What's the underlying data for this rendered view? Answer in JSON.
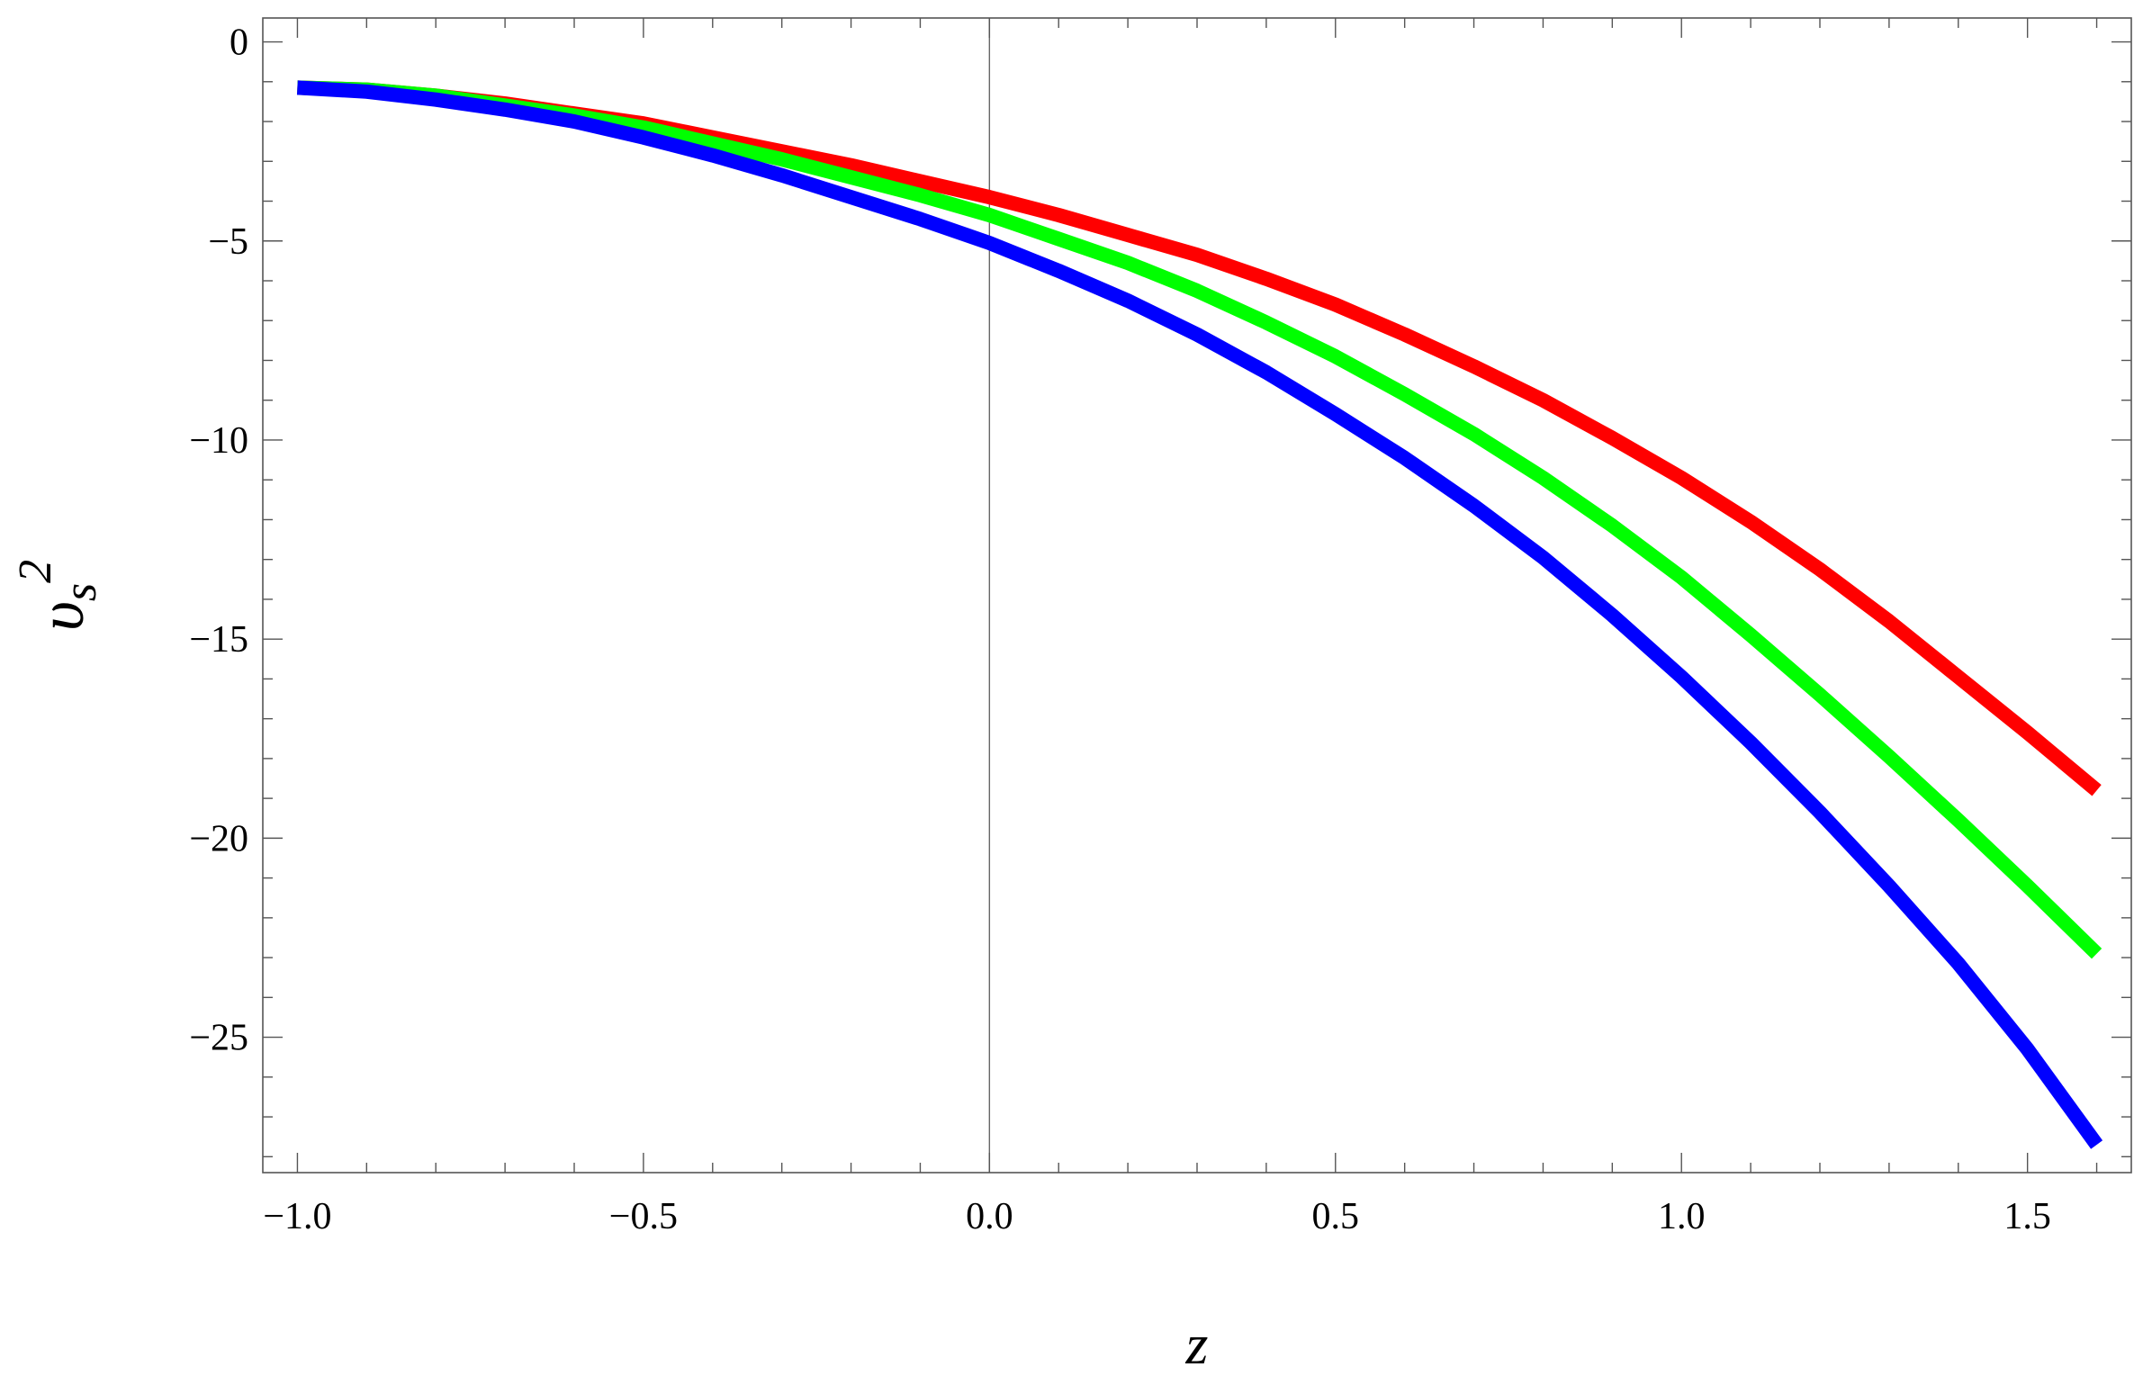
{
  "chart_data": {
    "type": "line",
    "title": "",
    "xlabel": "z",
    "ylabel": {
      "base": "υ",
      "sub": "s",
      "sup": "2"
    },
    "xlim": [
      -1.05,
      1.65
    ],
    "ylim": [
      -28.4,
      0.6
    ],
    "x_ticks": [
      {
        "value": -1.0,
        "label": "−1.0"
      },
      {
        "value": -0.5,
        "label": "−0.5"
      },
      {
        "value": 0.0,
        "label": "0.0"
      },
      {
        "value": 0.5,
        "label": "0.5"
      },
      {
        "value": 1.0,
        "label": "1.0"
      },
      {
        "value": 1.5,
        "label": "1.5"
      }
    ],
    "y_ticks": [
      {
        "value": 0,
        "label": "0"
      },
      {
        "value": -5,
        "label": "−5"
      },
      {
        "value": -10,
        "label": "−10"
      },
      {
        "value": -15,
        "label": "−15"
      },
      {
        "value": -20,
        "label": "−20"
      },
      {
        "value": -25,
        "label": "−25"
      }
    ],
    "x_minor_step": 0.1,
    "y_minor_step": 1,
    "grid": false,
    "legend": "none",
    "x": [
      -1.0,
      -0.9,
      -0.8,
      -0.7,
      -0.6,
      -0.5,
      -0.4,
      -0.3,
      -0.2,
      -0.1,
      0.0,
      0.1,
      0.2,
      0.3,
      0.4,
      0.5,
      0.6,
      0.7,
      0.8,
      0.9,
      1.0,
      1.1,
      1.2,
      1.3,
      1.4,
      1.5,
      1.6
    ],
    "series": [
      {
        "color": "#ff0000",
        "values": [
          -1.15,
          -1.2,
          -1.35,
          -1.55,
          -1.8,
          -2.05,
          -2.4,
          -2.75,
          -3.1,
          -3.5,
          -3.9,
          -4.35,
          -4.85,
          -5.35,
          -5.95,
          -6.6,
          -7.35,
          -8.15,
          -9.0,
          -9.95,
          -10.95,
          -12.05,
          -13.25,
          -14.55,
          -15.95,
          -17.35,
          -18.8
        ]
      },
      {
        "color": "#00ff00",
        "values": [
          -1.15,
          -1.2,
          -1.35,
          -1.6,
          -1.85,
          -2.15,
          -2.55,
          -2.95,
          -3.4,
          -3.85,
          -4.35,
          -4.95,
          -5.55,
          -6.25,
          -7.05,
          -7.9,
          -8.85,
          -9.85,
          -10.95,
          -12.15,
          -13.45,
          -14.9,
          -16.4,
          -17.95,
          -19.55,
          -21.2,
          -22.9
        ]
      },
      {
        "color": "#0000ff",
        "values": [
          -1.15,
          -1.25,
          -1.45,
          -1.7,
          -2.0,
          -2.4,
          -2.85,
          -3.35,
          -3.9,
          -4.45,
          -5.05,
          -5.75,
          -6.5,
          -7.35,
          -8.3,
          -9.35,
          -10.45,
          -11.65,
          -12.95,
          -14.4,
          -15.95,
          -17.6,
          -19.35,
          -21.2,
          -23.15,
          -25.3,
          -27.7
        ]
      }
    ]
  }
}
